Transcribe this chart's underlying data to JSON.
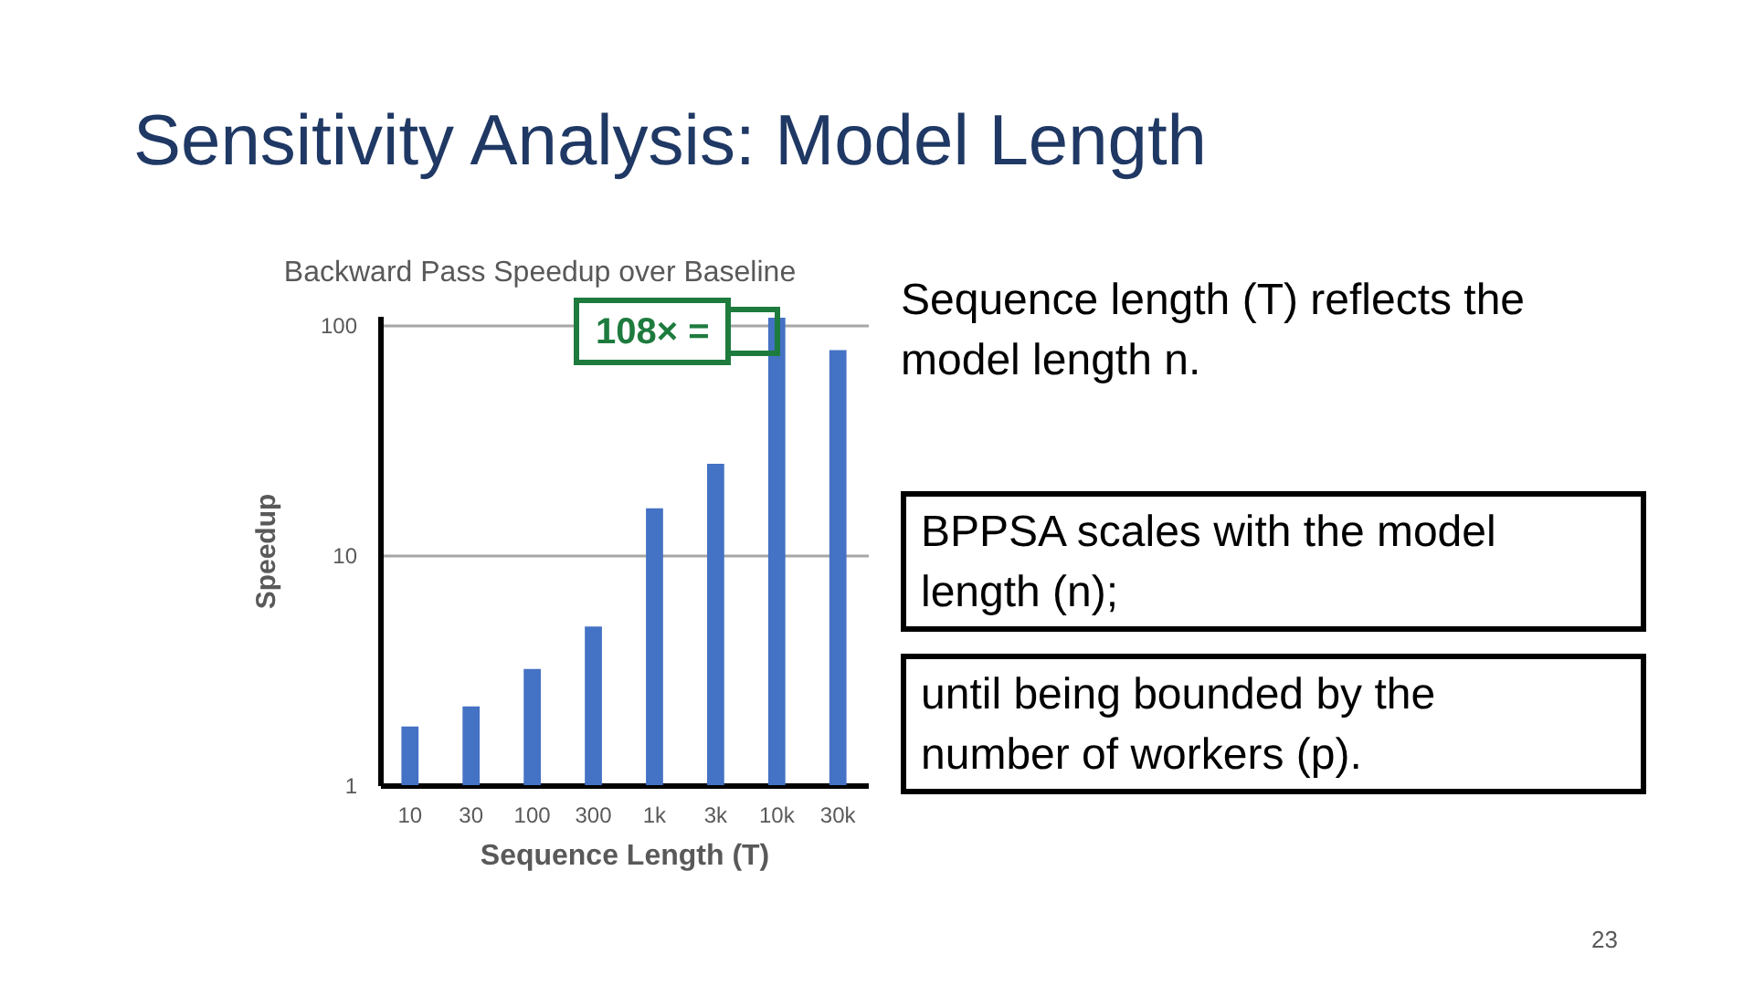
{
  "chart_data": {
    "type": "bar",
    "title": "Sensitivity Analysis: Model Length",
    "subtitle": "Backward Pass Speedup over Baseline",
    "xlabel": "Sequence Length (T)",
    "ylabel": "Speedup",
    "categories": [
      "10",
      "30",
      "100",
      "300",
      "1k",
      "3k",
      "10k",
      "30k"
    ],
    "values": [
      1.8,
      2.2,
      3.2,
      4.9,
      16,
      25,
      108,
      78
    ],
    "color": "#4472c4",
    "log": "y",
    "ylim": [
      1,
      110
    ],
    "yticks": [
      1,
      10,
      100
    ],
    "grid": "y",
    "annotations": [
      {
        "text": "108× =",
        "x": "10k",
        "y": 108
      },
      "Sequence length (T) reflects the model length n.",
      "BPPSA scales with the model length (n);",
      "until being bounded by the number of workers (p).",
      "23"
    ]
  }
}
